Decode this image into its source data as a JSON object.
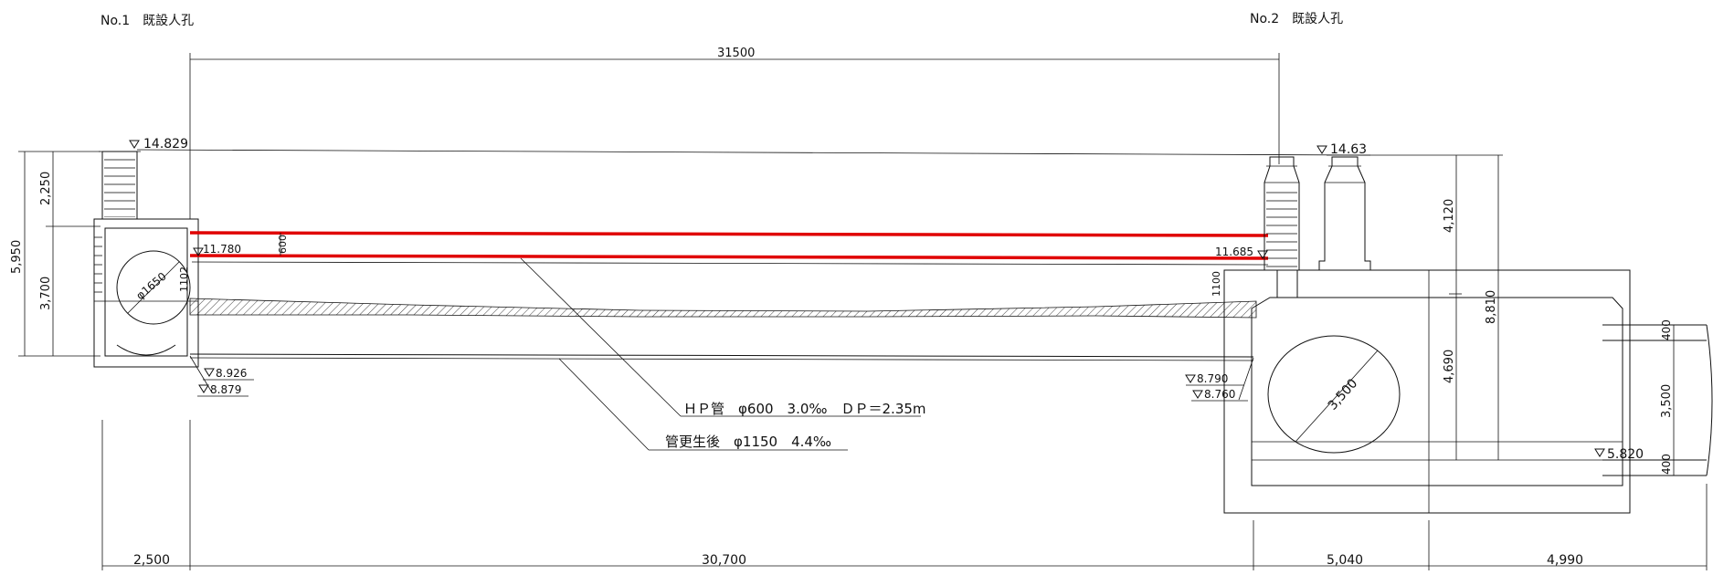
{
  "manholes": {
    "no1_label": "No.1　既設人孔",
    "no2_label": "No.2　既設人孔"
  },
  "dimensions": {
    "span_top": "31500",
    "mh1_height_total": "5,950",
    "mh1_upper": "2,250",
    "mh1_lower": "3,700",
    "pipe_dia_600": "600",
    "pipe_1102": "1102",
    "pipe_1100": "1100",
    "mh2_upper": "4,120",
    "mh2_lower": "4,690",
    "mh2_total": "8,810",
    "right_top": "400",
    "right_mid": "3,500",
    "right_bottom": "400",
    "bottom_left": "2,500",
    "bottom_mid": "30,700",
    "bottom_r1": "5,040",
    "bottom_r2": "4,990"
  },
  "elevations": {
    "ground_left": "14.829",
    "ground_right": "14.63",
    "invert_left_top": "11.780",
    "invert_right_top": "11.685",
    "left_bottom_1": "8.926",
    "left_bottom_2": "8.879",
    "right_bottom_1": "8.790",
    "right_bottom_2": "8.760",
    "right_low": "5.820"
  },
  "diameters": {
    "mh1_circle": "φ1650",
    "mh2_circle": "3,500"
  },
  "notes": {
    "hp_pipe": "ＨＰ管　φ600　3.0‰　ＤＰ＝2.35m",
    "renewed_pipe": "管更生後　φ1150　4.4‰"
  },
  "colors": {
    "line": "#111111",
    "new_pipe": "#e00000"
  }
}
